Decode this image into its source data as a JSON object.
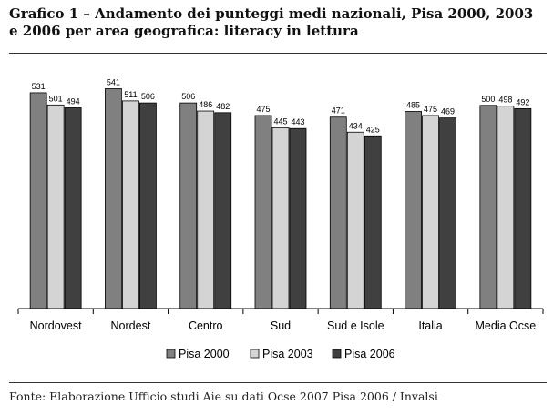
{
  "title": "Grafico 1 – Andamento dei punteggi medi nazionali, Pisa 2000, 2003 e 2006 per area geografica: literacy in lettura",
  "source": "Fonte: Elaborazione Ufficio studi Aie su dati Ocse 2007 Pisa 2006 / Invalsi",
  "chart_data": {
    "type": "bar",
    "categories": [
      "Nordovest",
      "Nordest",
      "Centro",
      "Sud",
      "Sud e Isole",
      "Italia",
      "Media Ocse"
    ],
    "series": [
      {
        "name": "Pisa 2000",
        "color": "#808080",
        "values": [
          531,
          541,
          506,
          475,
          471,
          485,
          500
        ]
      },
      {
        "name": "Pisa 2003",
        "color": "#d4d4d4",
        "values": [
          501,
          511,
          486,
          445,
          434,
          475,
          498
        ]
      },
      {
        "name": "Pisa 2006",
        "color": "#404040",
        "values": [
          494,
          506,
          482,
          443,
          425,
          469,
          492
        ]
      }
    ],
    "ylim": [
      0,
      560
    ],
    "grid": false,
    "legend": "bottom"
  }
}
